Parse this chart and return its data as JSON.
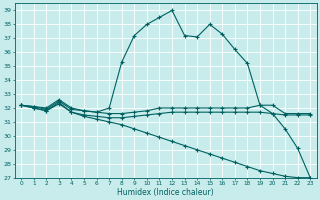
{
  "xlabel": "Humidex (Indice chaleur)",
  "bg_color": "#c8ecec",
  "grid_color": "#ffffff",
  "line_color": "#006060",
  "ylim": [
    27,
    39.5
  ],
  "xlim": [
    -0.5,
    23.5
  ],
  "yticks": [
    27,
    28,
    29,
    30,
    31,
    32,
    33,
    34,
    35,
    36,
    37,
    38,
    39
  ],
  "xticks": [
    0,
    1,
    2,
    3,
    4,
    5,
    6,
    7,
    8,
    9,
    10,
    11,
    12,
    13,
    14,
    15,
    16,
    17,
    18,
    19,
    20,
    21,
    22,
    23
  ],
  "line1_x": [
    0,
    1,
    2,
    3,
    4,
    5,
    6,
    7,
    8,
    9,
    10,
    11,
    12,
    13,
    14,
    15,
    16,
    17,
    18,
    19,
    20,
    21,
    22,
    23
  ],
  "line1_y": [
    32.2,
    32.1,
    32.0,
    32.6,
    32.0,
    31.8,
    31.7,
    32.0,
    35.3,
    37.2,
    38.0,
    38.5,
    39.0,
    37.2,
    37.1,
    38.0,
    37.3,
    36.2,
    35.2,
    32.2,
    31.6,
    30.5,
    29.1,
    27.0
  ],
  "line2_x": [
    0,
    1,
    2,
    3,
    4,
    5,
    6,
    7,
    8,
    9,
    10,
    11,
    12,
    13,
    14,
    15,
    16,
    17,
    18,
    19,
    20,
    21,
    22,
    23
  ],
  "line2_y": [
    32.2,
    32.1,
    31.9,
    32.5,
    31.9,
    31.8,
    31.7,
    31.6,
    31.6,
    31.7,
    31.8,
    32.0,
    32.0,
    32.0,
    32.0,
    32.0,
    32.0,
    32.0,
    32.0,
    32.2,
    32.2,
    31.6,
    31.6,
    31.6
  ],
  "line3_x": [
    0,
    1,
    2,
    3,
    4,
    5,
    6,
    7,
    8,
    9,
    10,
    11,
    12,
    13,
    14,
    15,
    16,
    17,
    18,
    19,
    20,
    21,
    22,
    23
  ],
  "line3_y": [
    32.2,
    32.0,
    31.8,
    32.4,
    31.7,
    31.5,
    31.4,
    31.3,
    31.3,
    31.4,
    31.5,
    31.6,
    31.7,
    31.7,
    31.7,
    31.7,
    31.7,
    31.7,
    31.7,
    31.7,
    31.6,
    31.5,
    31.5,
    31.5
  ],
  "line4_x": [
    0,
    1,
    2,
    3,
    4,
    5,
    6,
    7,
    8,
    9,
    10,
    11,
    12,
    13,
    14,
    15,
    16,
    17,
    18,
    19,
    20,
    21,
    22,
    23
  ],
  "line4_y": [
    32.2,
    32.0,
    31.8,
    32.3,
    31.7,
    31.4,
    31.2,
    31.0,
    30.8,
    30.5,
    30.2,
    29.9,
    29.6,
    29.3,
    29.0,
    28.7,
    28.4,
    28.1,
    27.8,
    27.5,
    27.3,
    27.1,
    27.0,
    27.0
  ]
}
